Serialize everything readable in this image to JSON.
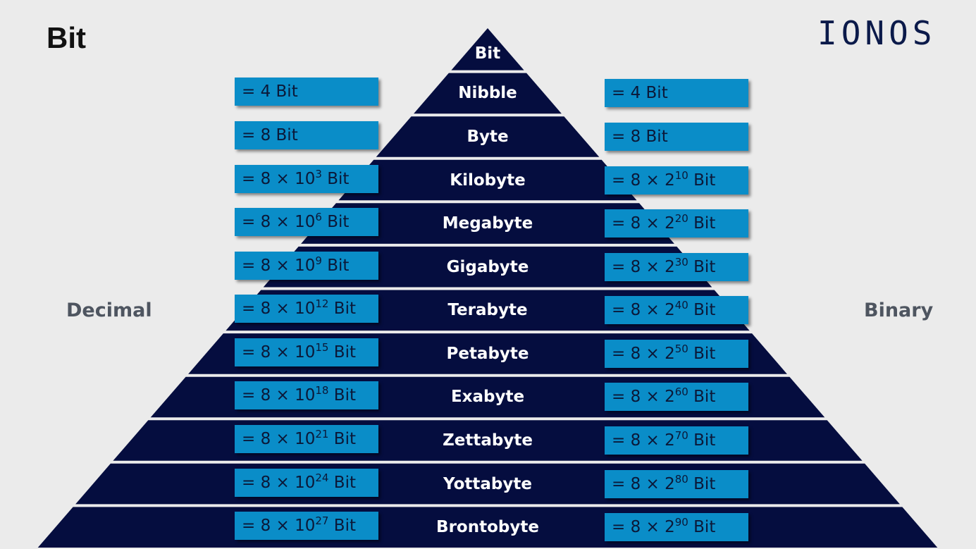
{
  "title": "Bit",
  "logo": "IONOS",
  "side_labels": {
    "left": "Decimal",
    "right": "Binary"
  },
  "levels": [
    {
      "name": "Bit",
      "decimal": null,
      "binary": null
    },
    {
      "name": "Nibble",
      "decimal": {
        "text": "= 4 Bit"
      },
      "binary": {
        "text": "= 4 Bit"
      }
    },
    {
      "name": "Byte",
      "decimal": {
        "text": "= 8 Bit"
      },
      "binary": {
        "text": "= 8 Bit"
      }
    },
    {
      "name": "Kilobyte",
      "decimal": {
        "pre": "= 8 × 10",
        "exp": "3",
        "post": " Bit"
      },
      "binary": {
        "pre": "= 8 × 2",
        "exp": "10",
        "post": " Bit"
      }
    },
    {
      "name": "Megabyte",
      "decimal": {
        "pre": "= 8 × 10",
        "exp": "6",
        "post": " Bit"
      },
      "binary": {
        "pre": "= 8 × 2",
        "exp": "20",
        "post": " Bit"
      }
    },
    {
      "name": "Gigabyte",
      "decimal": {
        "pre": "= 8 × 10",
        "exp": "9",
        "post": " Bit"
      },
      "binary": {
        "pre": "= 8 × 2",
        "exp": "30",
        "post": " Bit"
      }
    },
    {
      "name": "Terabyte",
      "decimal": {
        "pre": "= 8 × 10",
        "exp": "12",
        "post": " Bit"
      },
      "binary": {
        "pre": "= 8 × 2",
        "exp": "40",
        "post": " Bit"
      }
    },
    {
      "name": "Petabyte",
      "decimal": {
        "pre": "= 8 × 10",
        "exp": "15",
        "post": " Bit"
      },
      "binary": {
        "pre": "= 8 × 2",
        "exp": "50",
        "post": " Bit"
      }
    },
    {
      "name": "Exabyte",
      "decimal": {
        "pre": "= 8 × 10",
        "exp": "18",
        "post": " Bit"
      },
      "binary": {
        "pre": "= 8 × 2",
        "exp": "60",
        "post": " Bit"
      }
    },
    {
      "name": "Zettabyte",
      "decimal": {
        "pre": "= 8 × 10",
        "exp": "21",
        "post": " Bit"
      },
      "binary": {
        "pre": "= 8 × 2",
        "exp": "70",
        "post": " Bit"
      }
    },
    {
      "name": "Yottabyte",
      "decimal": {
        "pre": "= 8 × 10",
        "exp": "24",
        "post": " Bit"
      },
      "binary": {
        "pre": "= 8 × 2",
        "exp": "80",
        "post": " Bit"
      }
    },
    {
      "name": "Brontobyte",
      "decimal": {
        "pre": "= 8 × 10",
        "exp": "27",
        "post": " Bit"
      },
      "binary": {
        "pre": "= 8 × 2",
        "exp": "90",
        "post": " Bit"
      }
    }
  ],
  "colors": {
    "background": "#ebebeb",
    "pyramid": "#050d3f",
    "box": "#0a8dc8",
    "box_text": "#0b1838",
    "label": "#ffffff",
    "side_label": "#4e5560",
    "logo": "#0b1a4a"
  }
}
